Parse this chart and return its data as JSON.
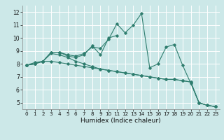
{
  "xlabel": "Humidex (Indice chaleur)",
  "bg_color": "#cce8e8",
  "grid_color": "#ffffff",
  "line_color": "#2e7d6e",
  "xlim": [
    -0.5,
    23.5
  ],
  "ylim": [
    4.5,
    12.5
  ],
  "x_ticks": [
    0,
    1,
    2,
    3,
    4,
    5,
    6,
    7,
    8,
    9,
    10,
    11,
    12,
    13,
    14,
    15,
    16,
    17,
    18,
    19,
    20,
    21,
    22,
    23
  ],
  "y_ticks": [
    5,
    6,
    7,
    8,
    9,
    10,
    11,
    12
  ],
  "lines": [
    {
      "x": [
        0,
        1,
        2,
        3,
        4,
        5,
        6,
        7,
        8,
        9,
        10,
        11,
        12,
        13,
        14,
        15,
        16,
        17,
        18,
        19,
        20,
        21,
        22,
        23
      ],
      "y": [
        7.9,
        8.0,
        8.2,
        8.8,
        8.7,
        8.5,
        8.2,
        8.0,
        7.8,
        7.6,
        7.5,
        7.4,
        7.3,
        7.2,
        7.1,
        7.0,
        6.9,
        6.8,
        6.8,
        6.7,
        6.6,
        5.0,
        4.8,
        4.7
      ]
    },
    {
      "x": [
        0,
        1,
        2,
        3,
        4,
        5,
        6,
        7,
        8,
        9,
        10,
        11,
        12,
        13,
        14,
        15,
        16,
        17,
        18,
        19,
        20,
        21,
        22,
        23
      ],
      "y": [
        7.9,
        8.1,
        8.2,
        8.9,
        8.9,
        8.7,
        8.6,
        8.8,
        9.3,
        9.2,
        9.9,
        11.1,
        10.4,
        11.0,
        11.9,
        7.7,
        8.0,
        9.3,
        9.5,
        7.9,
        6.5,
        5.0,
        4.8,
        4.7
      ]
    },
    {
      "x": [
        0,
        1,
        2,
        3,
        4,
        5,
        6,
        7,
        8,
        9,
        10,
        11,
        12,
        13,
        14,
        15,
        16,
        17,
        18,
        19,
        20,
        21,
        22,
        23
      ],
      "y": [
        7.9,
        8.0,
        8.2,
        8.9,
        8.9,
        8.6,
        8.5,
        8.7,
        9.4,
        8.7,
        10.0,
        10.2,
        null,
        null,
        null,
        null,
        null,
        null,
        null,
        null,
        null,
        null,
        null,
        null
      ]
    },
    {
      "x": [
        0,
        1,
        2,
        3,
        4,
        5,
        6,
        7,
        8,
        9,
        10,
        11,
        12,
        13,
        14,
        15,
        16,
        17,
        18,
        19,
        20,
        21,
        22,
        23
      ],
      "y": [
        7.9,
        8.0,
        8.2,
        8.2,
        8.1,
        8.0,
        7.9,
        7.8,
        7.7,
        7.6,
        7.5,
        7.4,
        7.3,
        7.2,
        7.1,
        7.0,
        6.9,
        6.8,
        6.8,
        6.7,
        6.6,
        5.0,
        4.8,
        4.7
      ]
    }
  ]
}
